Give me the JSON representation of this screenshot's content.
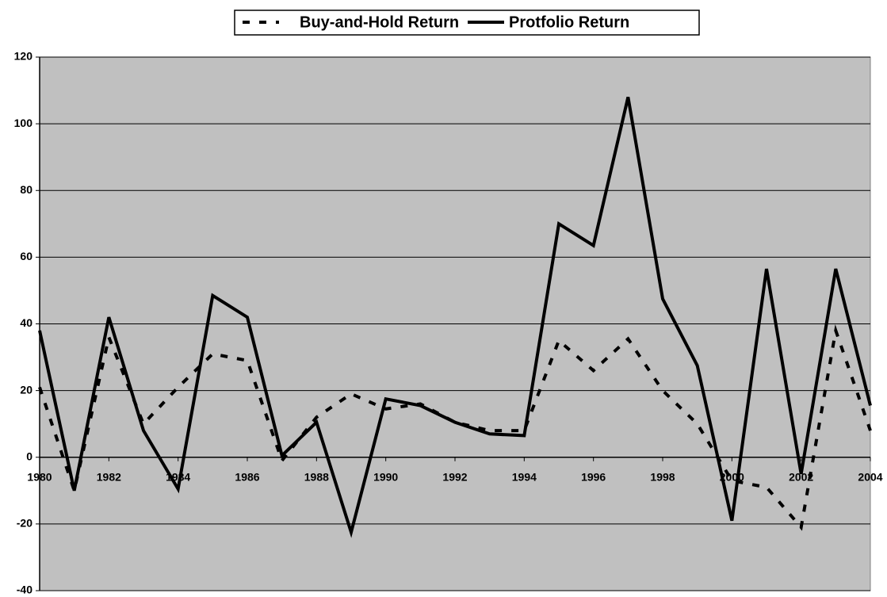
{
  "chart_data": {
    "type": "line",
    "x": [
      1980,
      1981,
      1982,
      1983,
      1984,
      1985,
      1986,
      1987,
      1988,
      1989,
      1990,
      1991,
      1992,
      1993,
      1994,
      1995,
      1996,
      1997,
      1998,
      1999,
      2000,
      2001,
      2002,
      2003,
      2004
    ],
    "series": [
      {
        "name": "Buy-and-Hold Return",
        "color": "#000000",
        "line_style": "dashed",
        "values": [
          21,
          -10,
          36,
          10,
          21,
          31,
          29,
          -1,
          12,
          19,
          14.5,
          16,
          10.5,
          8,
          8,
          35,
          26,
          35.5,
          20,
          10,
          -7,
          -9,
          -21,
          38,
          8
        ]
      },
      {
        "name": "Protfolio Return",
        "color": "#000000",
        "line_style": "solid",
        "values": [
          38,
          -10,
          42,
          8,
          -9.5,
          48.5,
          42,
          0.5,
          10.5,
          -22.5,
          17.5,
          15.5,
          10.5,
          7,
          6.5,
          70,
          63.5,
          108,
          47.5,
          27.5,
          -19,
          56.5,
          -5,
          56.5,
          15.5
        ]
      }
    ],
    "xlim": [
      1980,
      2004
    ],
    "xticks": [
      1980,
      1982,
      1984,
      1986,
      1988,
      1990,
      1992,
      1994,
      1996,
      1998,
      2000,
      2002,
      2004
    ],
    "ylim": [
      -40,
      120
    ],
    "yticks": [
      -40,
      -20,
      0,
      20,
      40,
      60,
      80,
      100,
      120
    ],
    "grid": true,
    "legend": "top",
    "plot_background": "#c0c0c0"
  }
}
